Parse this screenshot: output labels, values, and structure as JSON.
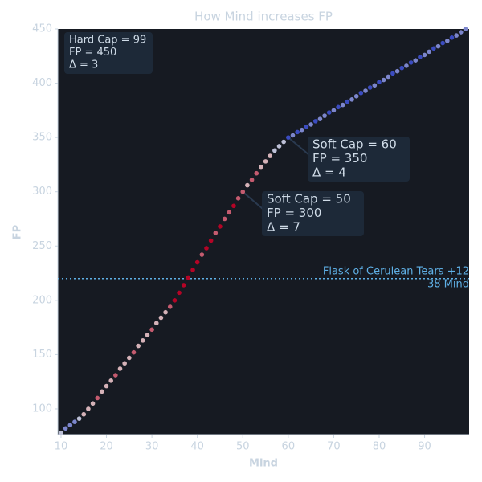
{
  "chart_data": {
    "type": "scatter",
    "title": "How Mind increases FP",
    "xlabel": "Mind",
    "ylabel": "FP",
    "x": [
      10,
      11,
      12,
      13,
      14,
      15,
      16,
      17,
      18,
      19,
      20,
      21,
      22,
      23,
      24,
      25,
      26,
      27,
      28,
      29,
      30,
      31,
      32,
      33,
      34,
      35,
      36,
      37,
      38,
      39,
      40,
      41,
      42,
      43,
      44,
      45,
      46,
      47,
      48,
      49,
      50,
      51,
      52,
      53,
      54,
      55,
      56,
      57,
      58,
      59,
      60,
      61,
      62,
      63,
      64,
      65,
      66,
      67,
      68,
      69,
      70,
      71,
      72,
      73,
      74,
      75,
      76,
      77,
      78,
      79,
      80,
      81,
      82,
      83,
      84,
      85,
      86,
      87,
      88,
      89,
      90,
      91,
      92,
      93,
      94,
      95,
      96,
      97,
      98,
      99
    ],
    "y": [
      78,
      82,
      85,
      88,
      91,
      95,
      100,
      105,
      110,
      116,
      121,
      126,
      131,
      137,
      142,
      147,
      152,
      158,
      163,
      168,
      173,
      179,
      184,
      189,
      194,
      200,
      207,
      214,
      221,
      228,
      235,
      242,
      248,
      255,
      262,
      268,
      275,
      281,
      287,
      294,
      300,
      306,
      311,
      317,
      323,
      328,
      333,
      338,
      342,
      346,
      350,
      352,
      355,
      357,
      360,
      362,
      365,
      367,
      370,
      373,
      375,
      378,
      380,
      383,
      385,
      388,
      391,
      393,
      396,
      398,
      401,
      403,
      406,
      409,
      411,
      414,
      416,
      419,
      421,
      424,
      426,
      429,
      432,
      434,
      437,
      439,
      442,
      444,
      447,
      450
    ],
    "color_low": "#3b4cc0",
    "color_mid": "#dddddd",
    "color_high": "#b40426",
    "xlim": [
      9.3,
      99.8
    ],
    "ylim": [
      76.3,
      450
    ],
    "xticks": [
      10,
      20,
      30,
      40,
      50,
      60,
      70,
      80,
      90
    ],
    "yticks": [
      100,
      150,
      200,
      250,
      300,
      350,
      400,
      450
    ],
    "hline": {
      "value": 220,
      "label": "Flask of Cerulean Tears +12",
      "sublabel": "38 Mind",
      "color": "#5fb0e6"
    },
    "annotations": [
      {
        "lines": [
          "Hard Cap = 99",
          "FP = 450",
          "Δ = 3"
        ]
      },
      {
        "x": 60,
        "y": 350,
        "lines": [
          "Soft Cap = 60",
          "FP = 350",
          "Δ = 4"
        ]
      },
      {
        "x": 50,
        "y": 300,
        "lines": [
          "Soft Cap = 50",
          "FP = 300",
          "Δ = 7"
        ]
      }
    ]
  }
}
